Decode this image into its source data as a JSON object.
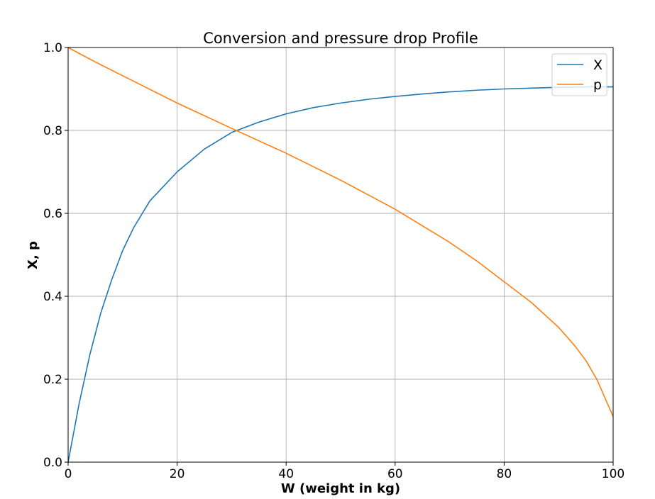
{
  "chart_data": {
    "type": "line",
    "title": "Conversion and pressure drop Profile",
    "xlabel": "W (weight in kg)",
    "ylabel": "X, p",
    "xlim": [
      0,
      100
    ],
    "ylim": [
      0,
      1
    ],
    "xticks": [
      "0",
      "20",
      "40",
      "60",
      "80",
      "100"
    ],
    "yticks": [
      "0.0",
      "0.2",
      "0.4",
      "0.6",
      "0.8",
      "1.0"
    ],
    "grid": true,
    "legend_position": "top-right",
    "series": [
      {
        "name": "X",
        "color": "#1f77b4",
        "x": [
          0,
          2,
          4,
          6,
          8,
          10,
          12,
          15,
          20,
          25,
          30,
          35,
          40,
          45,
          50,
          55,
          60,
          65,
          70,
          75,
          80,
          85,
          90,
          95,
          100
        ],
        "y": [
          0.0,
          0.14,
          0.26,
          0.36,
          0.44,
          0.51,
          0.565,
          0.63,
          0.7,
          0.755,
          0.795,
          0.82,
          0.84,
          0.855,
          0.866,
          0.875,
          0.882,
          0.888,
          0.893,
          0.897,
          0.9,
          0.902,
          0.904,
          0.905,
          0.905
        ]
      },
      {
        "name": "p",
        "color": "#ff7f0e",
        "x": [
          0,
          5,
          10,
          20,
          30,
          40,
          50,
          60,
          65,
          70,
          75,
          80,
          85,
          90,
          93,
          95,
          97,
          98,
          99,
          100
        ],
        "y": [
          1.0,
          0.965,
          0.932,
          0.866,
          0.805,
          0.745,
          0.68,
          0.61,
          0.57,
          0.53,
          0.485,
          0.435,
          0.385,
          0.325,
          0.28,
          0.245,
          0.2,
          0.17,
          0.14,
          0.11
        ]
      }
    ]
  }
}
